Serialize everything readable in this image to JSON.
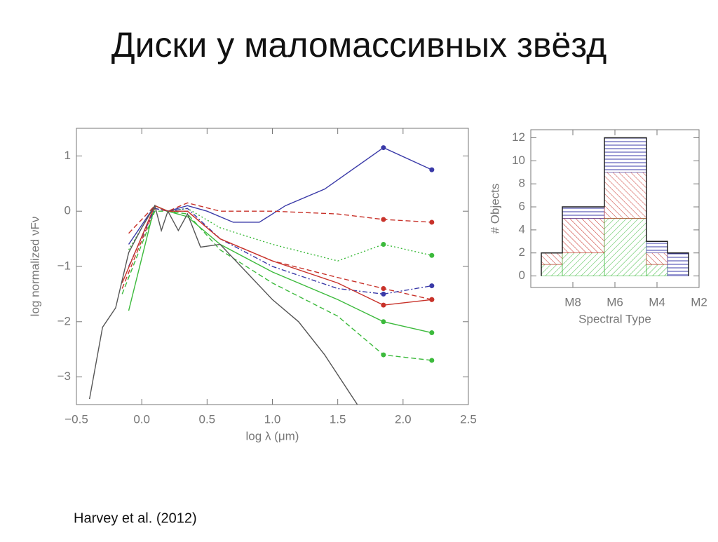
{
  "title": "Диски у маломассивных звёзд",
  "caption": "Harvey et al. (2012)",
  "chart_data": [
    {
      "type": "line",
      "xlabel": "log λ (μm)",
      "ylabel": "log normalized νFν",
      "xlim": [
        -0.5,
        2.5
      ],
      "ylim": [
        -3.5,
        1.5
      ],
      "xticks": [
        {
          "value": -0.5,
          "label": "−0.5"
        },
        {
          "value": 0,
          "label": "0.0"
        },
        {
          "value": 0.5,
          "label": "0.5"
        },
        {
          "value": 1,
          "label": "1.0"
        },
        {
          "value": 1.5,
          "label": "1.5"
        },
        {
          "value": 2,
          "label": "2.0"
        },
        {
          "value": 2.5,
          "label": "2.5"
        }
      ],
      "yticks": [
        1,
        0,
        {
          "value": -1,
          "label": "−1"
        },
        {
          "value": -2,
          "label": "−2"
        },
        {
          "value": -3,
          "label": "−3"
        }
      ],
      "series": [
        {
          "color": "#3a3aa8",
          "dash": "solid",
          "markers": true,
          "x": [
            -0.1,
            0.1,
            0.2,
            0.35,
            0.5,
            0.7,
            0.9,
            1.1,
            1.4,
            1.85,
            2.22
          ],
          "values": [
            -0.6,
            0.1,
            0,
            0.1,
            0,
            -0.2,
            -0.2,
            0.1,
            0.4,
            1.15,
            0.75
          ]
        },
        {
          "color": "#c8322a",
          "dash": "dashed",
          "markers": true,
          "x": [
            -0.1,
            0.1,
            0.2,
            0.35,
            0.6,
            1.0,
            1.5,
            1.85,
            2.22
          ],
          "values": [
            -0.4,
            0.1,
            0,
            0.15,
            0,
            0,
            -0.05,
            -0.15,
            -0.2
          ]
        },
        {
          "color": "#3cba3c",
          "dash": "dotted",
          "markers": true,
          "x": [
            -0.1,
            0.1,
            0.2,
            0.35,
            0.6,
            1.0,
            1.5,
            1.85,
            2.22
          ],
          "values": [
            -0.7,
            0.1,
            0,
            0.05,
            -0.3,
            -0.6,
            -0.9,
            -0.6,
            -0.8
          ]
        },
        {
          "color": "#c8322a",
          "dash": "dashed",
          "markers": true,
          "x": [
            -0.15,
            0.1,
            0.2,
            0.35,
            0.6,
            1.0,
            1.5,
            1.85,
            2.22
          ],
          "values": [
            -1.4,
            0.05,
            0,
            0,
            -0.5,
            -0.9,
            -1.2,
            -1.4,
            -1.6
          ]
        },
        {
          "color": "#3cba3c",
          "dash": "solid",
          "markers": true,
          "x": [
            -0.1,
            0.1,
            0.2,
            0.35,
            0.6,
            1.0,
            1.5,
            1.85,
            2.22
          ],
          "values": [
            -1.8,
            0.1,
            0,
            -0.1,
            -0.6,
            -1.1,
            -1.6,
            -2.0,
            -2.2
          ]
        },
        {
          "color": "#3a3aa8",
          "dash": "dashdot",
          "markers": true,
          "x": [
            -0.1,
            0.1,
            0.2,
            0.35,
            0.6,
            1.0,
            1.5,
            1.85,
            2.22
          ],
          "values": [
            -1.0,
            0.05,
            0,
            0.05,
            -0.5,
            -1.0,
            -1.4,
            -1.5,
            -1.35
          ]
        },
        {
          "color": "#3cba3c",
          "dash": "dashed",
          "markers": true,
          "x": [
            -0.15,
            0.1,
            0.2,
            0.35,
            0.6,
            1.0,
            1.5,
            1.85,
            2.22
          ],
          "values": [
            -1.5,
            0,
            0,
            -0.05,
            -0.7,
            -1.3,
            -1.9,
            -2.6,
            -2.7
          ]
        },
        {
          "color": "#c8322a",
          "dash": "solid",
          "markers": true,
          "x": [
            -0.15,
            0.1,
            0.2,
            0.35,
            0.6,
            1.0,
            1.5,
            1.85,
            2.22
          ],
          "values": [
            -1.3,
            0.1,
            0,
            0,
            -0.5,
            -0.9,
            -1.3,
            -1.7,
            -1.6
          ]
        },
        {
          "color": "#555555",
          "dash": "solid",
          "markers": false,
          "x": [
            -0.4,
            -0.3,
            -0.2,
            -0.1,
            0.0,
            0.1,
            0.15,
            0.2,
            0.28,
            0.35,
            0.45,
            0.6,
            0.8,
            1.0,
            1.2,
            1.4,
            1.65
          ],
          "values": [
            -3.4,
            -2.1,
            -1.75,
            -0.75,
            -0.3,
            0.1,
            -0.35,
            0,
            -0.35,
            -0.05,
            -0.65,
            -0.6,
            -1.1,
            -1.6,
            -2.0,
            -2.6,
            -3.5
          ]
        }
      ]
    },
    {
      "type": "histogram",
      "xlabel": "Spectral Type",
      "ylabel": "# Objects",
      "xlim": [
        10,
        2
      ],
      "ylim": [
        -1,
        12.7
      ],
      "xticks": [
        {
          "value": 8,
          "label": "M8"
        },
        {
          "value": 6,
          "label": "M6"
        },
        {
          "value": 4,
          "label": "M4"
        },
        {
          "value": 2,
          "label": "M2"
        }
      ],
      "yticks": [
        0,
        2,
        4,
        6,
        8,
        10,
        12
      ],
      "bins": [
        9.5,
        8.5,
        6.5,
        4.5,
        3.5,
        2.5
      ],
      "series": [
        {
          "color": "#3cba3c",
          "values": [
            1,
            2,
            5,
            1,
            0
          ]
        },
        {
          "color": "#c8322a",
          "values": [
            1,
            3,
            4,
            1,
            0
          ]
        },
        {
          "color": "#3a3aa8",
          "values": [
            0,
            1,
            3,
            1,
            2
          ]
        }
      ]
    }
  ]
}
